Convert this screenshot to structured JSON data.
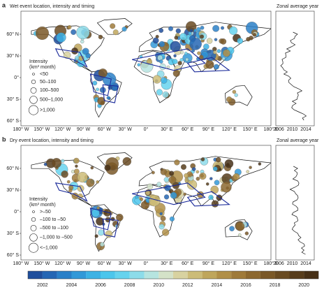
{
  "panels": [
    {
      "label": "a",
      "title": "Wet event location, intensity and timing",
      "side_title": "Zonal average year",
      "lat_ticks": [
        "60° N",
        "30° N",
        "0°",
        "30° S",
        "60° S"
      ],
      "lon_ticks": [
        "180° W",
        "150° W",
        "120° W",
        "90° W",
        "60° W",
        "30° W",
        "0°",
        "30° E",
        "60° E",
        "90° E",
        "120° E",
        "150° E",
        "180° E"
      ],
      "year_ticks": [
        "2006",
        "2010",
        "2014"
      ],
      "legend": {
        "title": "Intensity",
        "unit": "(km³ month)",
        "entries": [
          "<50",
          "50–100",
          "100–500",
          "500–1,000",
          ">1,000"
        ]
      }
    },
    {
      "label": "b",
      "title": "Dry event location, intensity and timing",
      "side_title": "Zonal average year",
      "lat_ticks": [
        "60° N",
        "30° N",
        "0°",
        "30° S",
        "60° S"
      ],
      "lon_ticks": [
        "180° W",
        "150° W",
        "120° W",
        "90° W",
        "60° W",
        "30° W",
        "0°",
        "30° E",
        "60° E",
        "90° E",
        "120° E",
        "150° E",
        "180° E"
      ],
      "year_ticks": [
        "2006",
        "2010",
        "2014"
      ],
      "legend": {
        "title": "Intensity",
        "unit": "(km³ month)",
        "entries": [
          ">–50",
          "–100 to –50",
          "–500 to –100",
          "–1,000 to –500",
          "<–1,000"
        ]
      }
    }
  ],
  "colorbar": {
    "ticks": [
      "2002",
      "2004",
      "2006",
      "2008",
      "2010",
      "2012",
      "2014",
      "2016",
      "2018",
      "2020"
    ],
    "colors": [
      "#1f4e9c",
      "#2466b4",
      "#2a80c8",
      "#3299d8",
      "#3db2e4",
      "#4cc6ec",
      "#66d3ee",
      "#8ddcea",
      "#b6e4e0",
      "#d4e2c8",
      "#d8d2a0",
      "#ccbc78",
      "#bfa65c",
      "#b08f48",
      "#9f7a3a",
      "#8c6830",
      "#7a5828",
      "#684a22",
      "#573d1c",
      "#463017"
    ]
  }
}
